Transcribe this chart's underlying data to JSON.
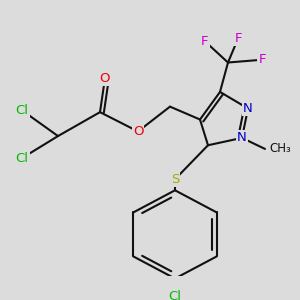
{
  "bg_color": "#dcdcdc",
  "bond_color": "#111111",
  "bond_width": 1.5,
  "dbo": 0.013,
  "atom_colors": {
    "Cl": "#00bb00",
    "O": "#ee0000",
    "F": "#cc00cc",
    "N": "#0000cc",
    "S": "#aaaa00",
    "C": "#111111"
  },
  "fs": 9.5
}
